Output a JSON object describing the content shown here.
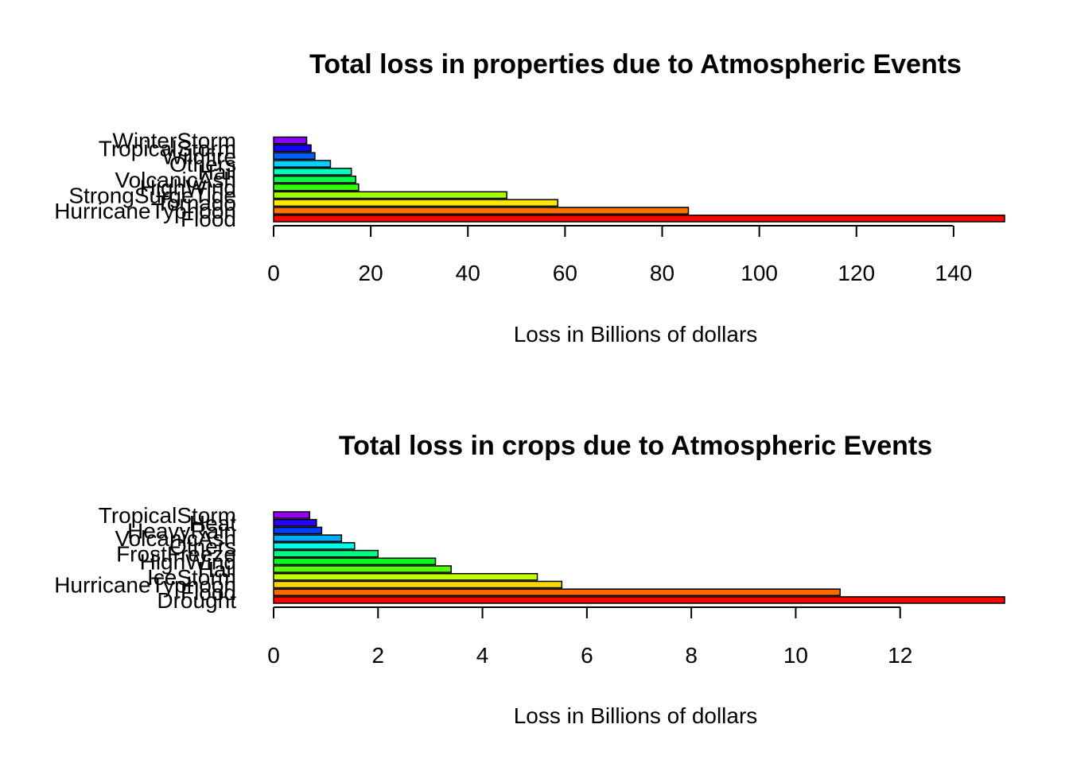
{
  "chart_data": [
    {
      "type": "bar",
      "orientation": "horizontal",
      "title": "Total loss in properties due to Atmospheric Events",
      "xlabel": "Loss in Billions of dollars",
      "ylabel": "",
      "xlim": [
        0,
        150.5
      ],
      "x_ticks": [
        0,
        20,
        40,
        60,
        80,
        100,
        120,
        140
      ],
      "categories": [
        "Flood",
        "HurricaneTyphoon",
        "Tornado",
        "StrongSurgeTide",
        "HighWind",
        "VolcanicAsh",
        "Hail",
        "Others",
        "Wildfire",
        "TropicalStorm",
        "WinterStorm"
      ],
      "values": [
        150.5,
        85.4,
        58.5,
        48.0,
        17.5,
        16.9,
        16.0,
        11.7,
        8.5,
        7.7,
        6.8
      ],
      "colors": [
        "#FF0000",
        "#FF7400",
        "#FFE800",
        "#A2FF00",
        "#2EFF00",
        "#00FF46",
        "#00FFB9",
        "#00D1FF",
        "#005DFF",
        "#1700FF",
        "#8B00FF"
      ],
      "grid": false,
      "legend": "none"
    },
    {
      "type": "bar",
      "orientation": "horizontal",
      "title": "Total loss in crops due to Atmospheric Events",
      "xlabel": "Loss in Billions of dollars",
      "ylabel": "",
      "xlim": [
        0,
        14.0
      ],
      "x_ticks": [
        0,
        2,
        4,
        6,
        8,
        10,
        12
      ],
      "categories": [
        "Drought",
        "Flood",
        "HurricaneTyphoon",
        "IceStorm",
        "Hail",
        "HighWind",
        "FrostFreeze",
        "Others",
        "VolcanicAsh",
        "HeavyRain",
        "Heat",
        "TropicalStorm"
      ],
      "values": [
        14.0,
        10.85,
        5.52,
        5.05,
        3.4,
        3.1,
        2.0,
        1.55,
        1.3,
        0.92,
        0.82,
        0.69
      ],
      "colors": [
        "#FF0000",
        "#FF6A00",
        "#FFD500",
        "#BFFF00",
        "#55FF00",
        "#00FF15",
        "#00FF80",
        "#00FFEA",
        "#00AAFF",
        "#003FFF",
        "#2A00FF",
        "#9500FF"
      ],
      "grid": false,
      "legend": "none"
    }
  ]
}
